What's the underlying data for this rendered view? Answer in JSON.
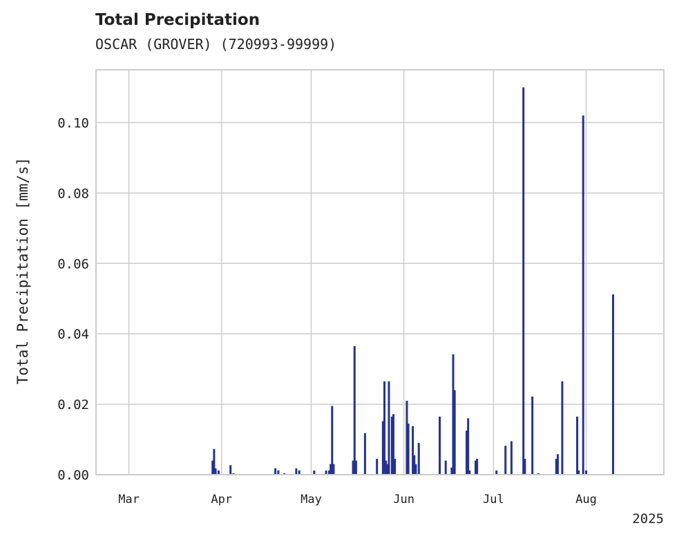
{
  "chart_data": {
    "type": "bar",
    "title": "Total Precipitation",
    "subtitle": "OSCAR (GROVER) (720993-99999)",
    "ylabel": "Total Precipitation [mm/s]",
    "xlabel": "",
    "x_offset_label": "2025",
    "ylim": [
      0,
      0.115
    ],
    "xlim": [
      "2025-02-18",
      "2025-08-27"
    ],
    "grid": true,
    "yticks": [
      {
        "value": 0.0,
        "label": "0.00"
      },
      {
        "value": 0.02,
        "label": "0.02"
      },
      {
        "value": 0.04,
        "label": "0.04"
      },
      {
        "value": 0.06,
        "label": "0.06"
      },
      {
        "value": 0.08,
        "label": "0.08"
      },
      {
        "value": 0.1,
        "label": "0.10"
      }
    ],
    "xticks": [
      {
        "date": "2025-03-01",
        "label": "Mar"
      },
      {
        "date": "2025-04-01",
        "label": "Apr"
      },
      {
        "date": "2025-05-01",
        "label": "May"
      },
      {
        "date": "2025-06-01",
        "label": "Jun"
      },
      {
        "date": "2025-07-01",
        "label": "Jul"
      },
      {
        "date": "2025-08-01",
        "label": "Aug"
      }
    ],
    "series": [
      {
        "color": "#25338f",
        "points": [
          {
            "date": "2025-03-29",
            "value": 0.004
          },
          {
            "date": "2025-03-29T12:00",
            "value": 0.0073
          },
          {
            "date": "2025-03-30",
            "value": 0.0018
          },
          {
            "date": "2025-03-31",
            "value": 0.0012
          },
          {
            "date": "2025-04-04",
            "value": 0.0027
          },
          {
            "date": "2025-04-05",
            "value": 0.0004
          },
          {
            "date": "2025-04-19",
            "value": 0.0018
          },
          {
            "date": "2025-04-20",
            "value": 0.0012
          },
          {
            "date": "2025-04-22",
            "value": 0.0004
          },
          {
            "date": "2025-04-26",
            "value": 0.0018
          },
          {
            "date": "2025-04-27",
            "value": 0.0012
          },
          {
            "date": "2025-05-02",
            "value": 0.0012
          },
          {
            "date": "2025-05-06",
            "value": 0.0012
          },
          {
            "date": "2025-05-07",
            "value": 0.0012
          },
          {
            "date": "2025-05-07T12:00",
            "value": 0.003
          },
          {
            "date": "2025-05-08",
            "value": 0.0195
          },
          {
            "date": "2025-05-08T12:00",
            "value": 0.003
          },
          {
            "date": "2025-05-15",
            "value": 0.004
          },
          {
            "date": "2025-05-15T12:00",
            "value": 0.0365
          },
          {
            "date": "2025-05-16",
            "value": 0.004
          },
          {
            "date": "2025-05-19",
            "value": 0.0118
          },
          {
            "date": "2025-05-23",
            "value": 0.0045
          },
          {
            "date": "2025-05-25",
            "value": 0.0152
          },
          {
            "date": "2025-05-25T12:00",
            "value": 0.0265
          },
          {
            "date": "2025-05-26",
            "value": 0.004
          },
          {
            "date": "2025-05-26T12:00",
            "value": 0.003
          },
          {
            "date": "2025-05-27",
            "value": 0.0265
          },
          {
            "date": "2025-05-28",
            "value": 0.0165
          },
          {
            "date": "2025-05-28T12:00",
            "value": 0.0172
          },
          {
            "date": "2025-05-29",
            "value": 0.0045
          },
          {
            "date": "2025-06-02",
            "value": 0.021
          },
          {
            "date": "2025-06-02T12:00",
            "value": 0.0145
          },
          {
            "date": "2025-06-04",
            "value": 0.0138
          },
          {
            "date": "2025-06-04T12:00",
            "value": 0.0055
          },
          {
            "date": "2025-06-05",
            "value": 0.003
          },
          {
            "date": "2025-06-06",
            "value": 0.009
          },
          {
            "date": "2025-06-13",
            "value": 0.0165
          },
          {
            "date": "2025-06-15",
            "value": 0.004
          },
          {
            "date": "2025-06-17",
            "value": 0.002
          },
          {
            "date": "2025-06-17T12:00",
            "value": 0.0342
          },
          {
            "date": "2025-06-18",
            "value": 0.024
          },
          {
            "date": "2025-06-22",
            "value": 0.0125
          },
          {
            "date": "2025-06-22T12:00",
            "value": 0.016
          },
          {
            "date": "2025-06-23",
            "value": 0.0012
          },
          {
            "date": "2025-06-25",
            "value": 0.004
          },
          {
            "date": "2025-06-25T12:00",
            "value": 0.0045
          },
          {
            "date": "2025-07-02",
            "value": 0.0012
          },
          {
            "date": "2025-07-05",
            "value": 0.0082
          },
          {
            "date": "2025-07-07",
            "value": 0.0095
          },
          {
            "date": "2025-07-11",
            "value": 0.11
          },
          {
            "date": "2025-07-11T12:00",
            "value": 0.0045
          },
          {
            "date": "2025-07-14",
            "value": 0.0222
          },
          {
            "date": "2025-07-16",
            "value": 0.0004
          },
          {
            "date": "2025-07-22",
            "value": 0.0045
          },
          {
            "date": "2025-07-22T12:00",
            "value": 0.0058
          },
          {
            "date": "2025-07-24",
            "value": 0.0265
          },
          {
            "date": "2025-07-29",
            "value": 0.0165
          },
          {
            "date": "2025-07-29T12:00",
            "value": 0.0012
          },
          {
            "date": "2025-07-31",
            "value": 0.102
          },
          {
            "date": "2025-08-01",
            "value": 0.0012
          },
          {
            "date": "2025-08-10",
            "value": 0.0512
          }
        ]
      }
    ]
  }
}
